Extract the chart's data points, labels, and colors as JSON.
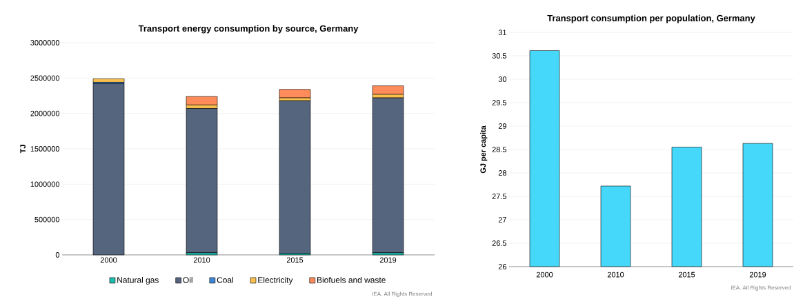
{
  "chart_data": [
    {
      "type": "bar",
      "title": "Transport energy consumption by source, Germany",
      "ylabel": "TJ",
      "categories": [
        "2000",
        "2010",
        "2015",
        "2019"
      ],
      "stacked": true,
      "series": [
        {
          "name": "Natural gas",
          "color": "#1fbfae",
          "values": [
            0,
            30000,
            20000,
            30000
          ]
        },
        {
          "name": "Oil",
          "color": "#55657d",
          "values": [
            2420000,
            2040000,
            2160000,
            2190000
          ]
        },
        {
          "name": "Coal",
          "color": "#3f86d6",
          "values": [
            20000,
            0,
            0,
            0
          ]
        },
        {
          "name": "Electricity",
          "color": "#f9c04e",
          "values": [
            50000,
            50000,
            40000,
            50000
          ]
        },
        {
          "name": "Biofuels and waste",
          "color": "#ff8c5a",
          "values": [
            0,
            120000,
            120000,
            120000
          ]
        }
      ],
      "ylim": [
        0,
        3000000
      ],
      "yticks": [
        0,
        500000,
        1000000,
        1500000,
        2000000,
        2500000,
        3000000
      ],
      "grid": "y",
      "legend": "bottom",
      "annotations": [
        "IEA. All Rights Reserved"
      ]
    },
    {
      "type": "bar",
      "title": "Transport consumption per population, Germany",
      "ylabel": "GJ per capita",
      "categories": [
        "2000",
        "2010",
        "2015",
        "2019"
      ],
      "values": [
        30.61,
        27.72,
        28.55,
        28.63
      ],
      "color": "#45d8fa",
      "ylim": [
        26,
        31
      ],
      "yticks": [
        26,
        26.5,
        27,
        27.5,
        28,
        28.5,
        29,
        29.5,
        30,
        30.5,
        31
      ],
      "grid": "y",
      "annotations": [
        "IEA. All Rights Reserved"
      ]
    }
  ]
}
